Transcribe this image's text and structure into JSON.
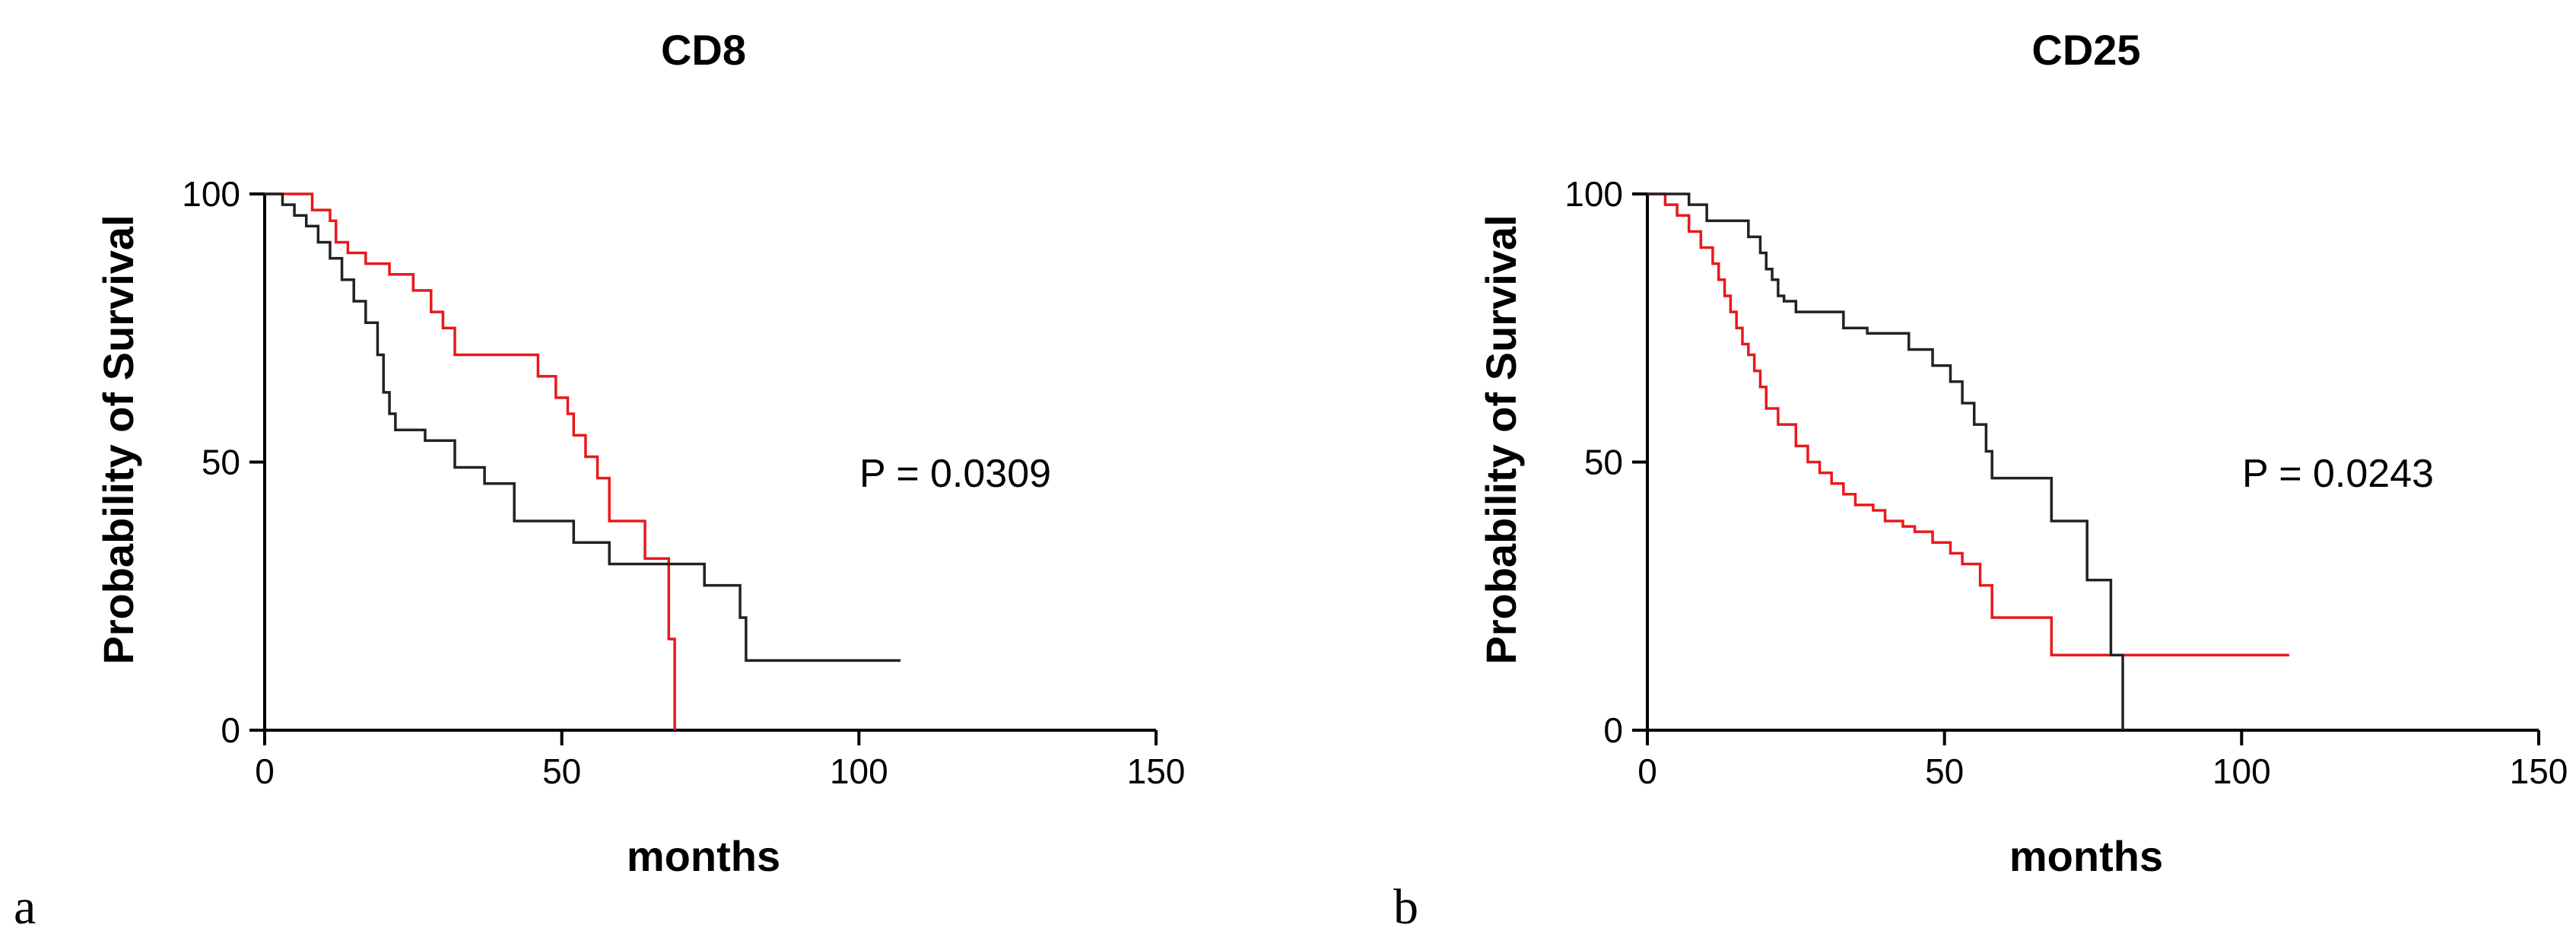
{
  "chart_data": [
    {
      "type": "line",
      "panel_label": "a",
      "title": "CD8",
      "xlabel": "months",
      "ylabel": "Probability of Survival",
      "xlim": [
        0,
        150
      ],
      "ylim": [
        0,
        100
      ],
      "xticks": [
        0,
        50,
        100,
        150
      ],
      "yticks": [
        0,
        50,
        100
      ],
      "annotation": "P = 0.0309",
      "series": [
        {
          "color": "#e8191d",
          "x": [
            0,
            8,
            11,
            12,
            14,
            17,
            21,
            25,
            28,
            30,
            32,
            46,
            49,
            51,
            52,
            54,
            56,
            58,
            64,
            68,
            69
          ],
          "y": [
            100,
            97,
            95,
            91,
            89,
            87,
            85,
            82,
            78,
            75,
            70,
            66,
            62,
            59,
            55,
            51,
            47,
            39,
            32,
            17,
            0
          ]
        },
        {
          "color": "#222222",
          "x": [
            0,
            3,
            5,
            7,
            9,
            11,
            13,
            15,
            17,
            19,
            20,
            21,
            22,
            27,
            32,
            37,
            42,
            52,
            58,
            74,
            80,
            81,
            107
          ],
          "y": [
            100,
            98,
            96,
            94,
            91,
            88,
            84,
            80,
            76,
            70,
            63,
            59,
            56,
            54,
            49,
            46,
            39,
            35,
            31,
            27,
            21,
            13,
            13
          ]
        }
      ]
    },
    {
      "type": "line",
      "panel_label": "b",
      "title": "CD25",
      "xlabel": "months",
      "ylabel": "Probability of Survival",
      "xlim": [
        0,
        150
      ],
      "ylim": [
        0,
        100
      ],
      "xticks": [
        0,
        50,
        100,
        150
      ],
      "yticks": [
        0,
        50,
        100
      ],
      "annotation": "P = 0.0243",
      "series": [
        {
          "color": "#e8191d",
          "x": [
            0,
            3,
            5,
            7,
            9,
            11,
            12,
            13,
            14,
            15,
            16,
            17,
            18,
            19,
            20,
            22,
            25,
            27,
            29,
            31,
            33,
            35,
            38,
            40,
            43,
            45,
            48,
            51,
            53,
            56,
            58,
            68,
            108
          ],
          "y": [
            100,
            98,
            96,
            93,
            90,
            87,
            84,
            81,
            78,
            75,
            72,
            70,
            67,
            64,
            60,
            57,
            53,
            50,
            48,
            46,
            44,
            42,
            41,
            39,
            38,
            37,
            35,
            33,
            31,
            27,
            21,
            14,
            14
          ]
        },
        {
          "color": "#222222",
          "x": [
            0,
            7,
            10,
            17,
            19,
            20,
            21,
            22,
            23,
            25,
            33,
            37,
            44,
            48,
            51,
            53,
            55,
            57,
            58,
            61,
            68,
            74,
            78,
            80
          ],
          "y": [
            100,
            98,
            95,
            92,
            89,
            86,
            84,
            81,
            80,
            78,
            75,
            74,
            71,
            68,
            65,
            61,
            57,
            52,
            47,
            47,
            39,
            28,
            14,
            0
          ]
        }
      ]
    }
  ]
}
